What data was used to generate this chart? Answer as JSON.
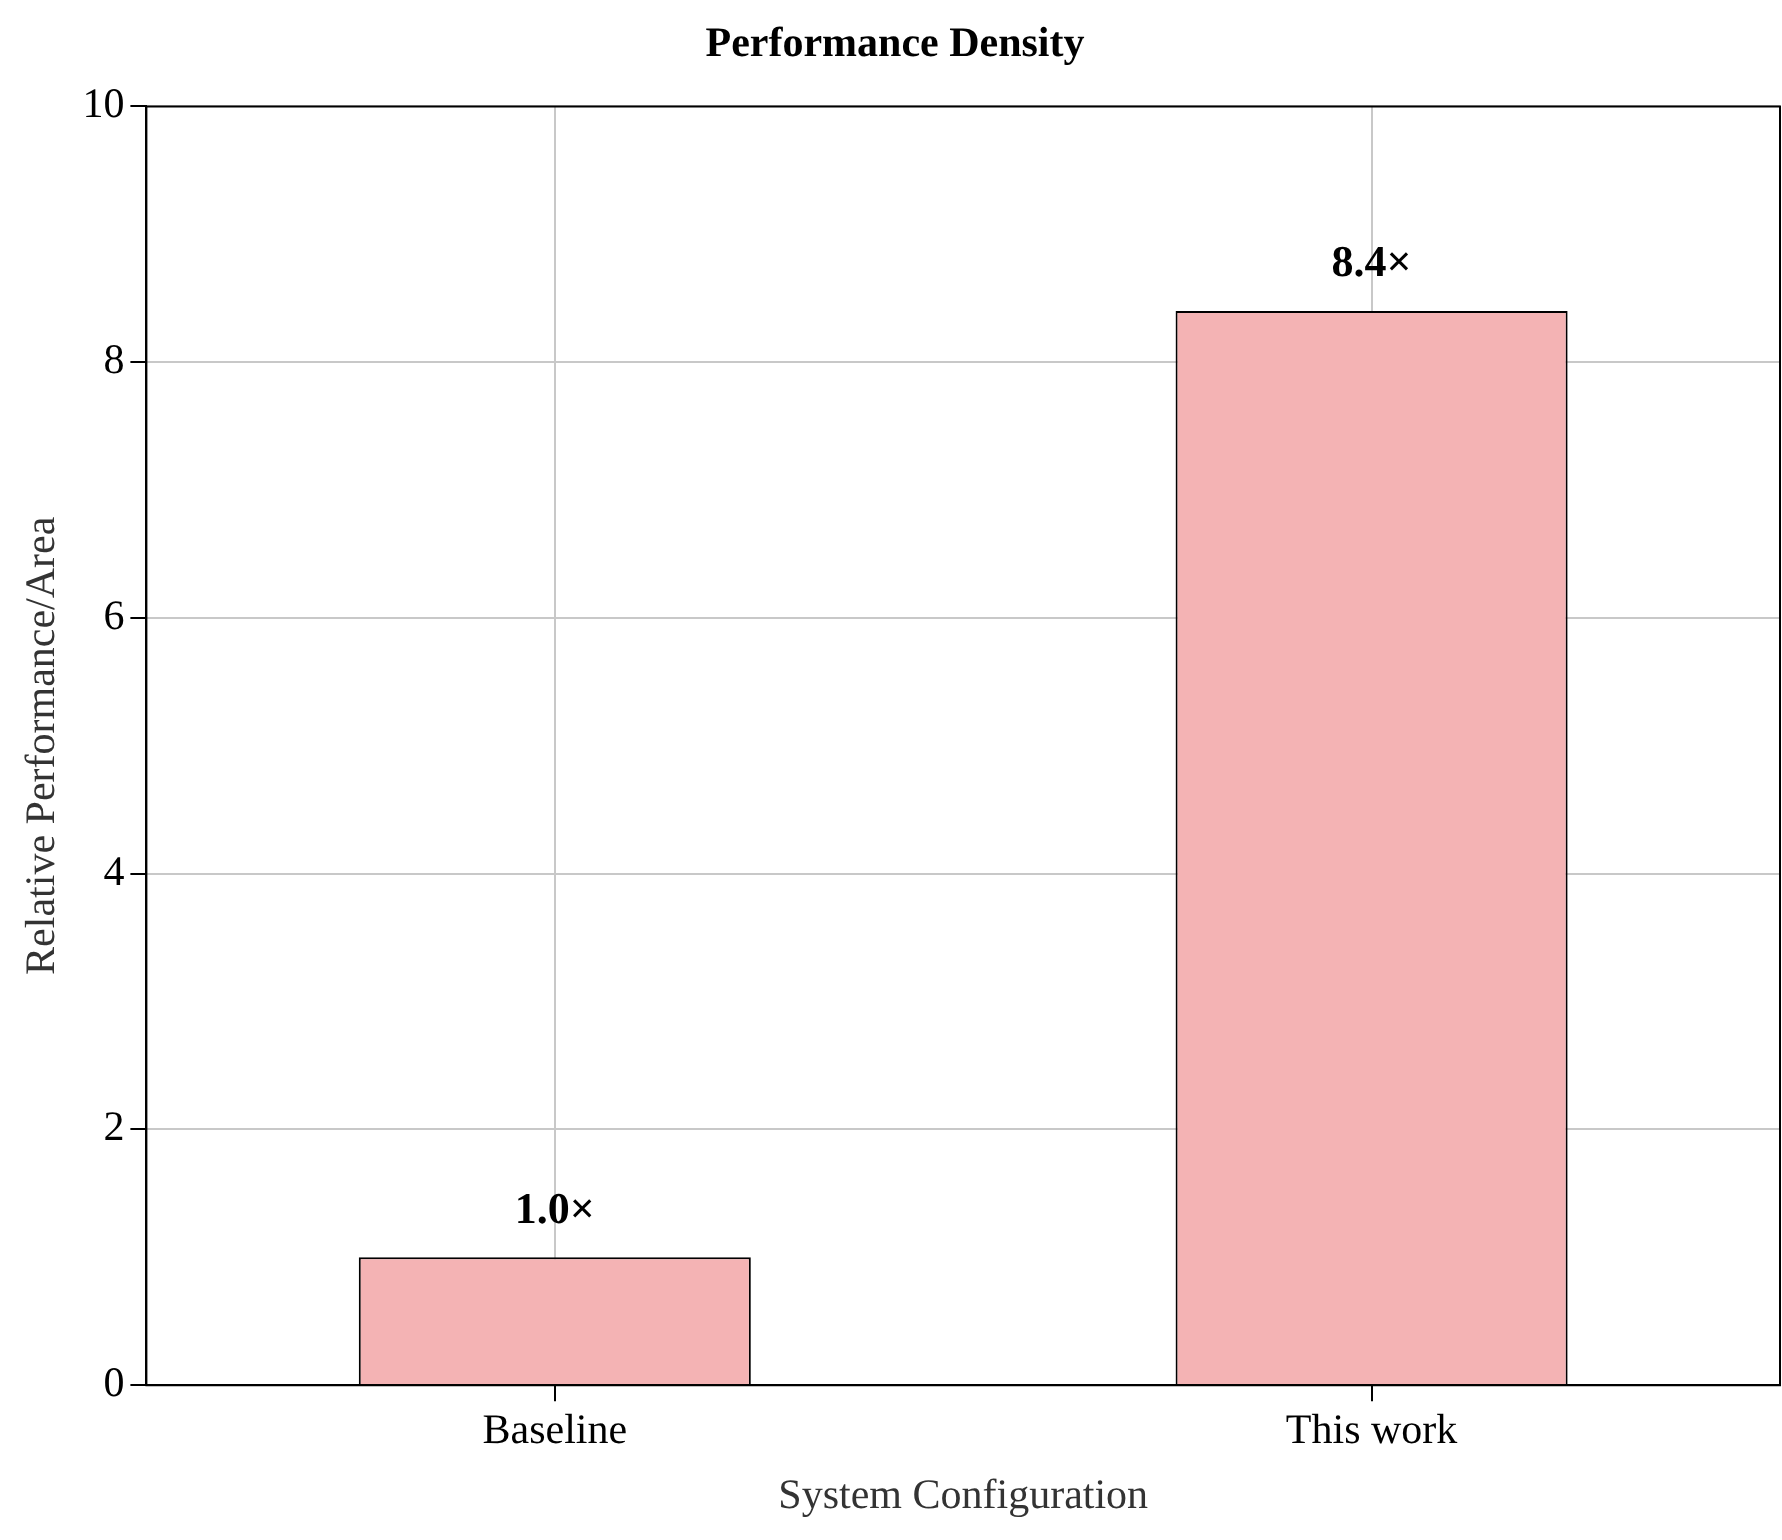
{
  "chart_data": {
    "type": "bar",
    "title": "Performance Density",
    "xlabel": "System Configuration",
    "ylabel": "Relative Performance/Area",
    "categories": [
      "Baseline",
      "This work"
    ],
    "values": [
      1.0,
      8.4
    ],
    "value_labels": [
      "1.0×",
      "8.4×"
    ],
    "color": "#f4b3b4",
    "ylim": [
      0,
      10
    ],
    "yticks": [
      0,
      2,
      4,
      6,
      8,
      10
    ],
    "grid": true,
    "legend": false
  }
}
